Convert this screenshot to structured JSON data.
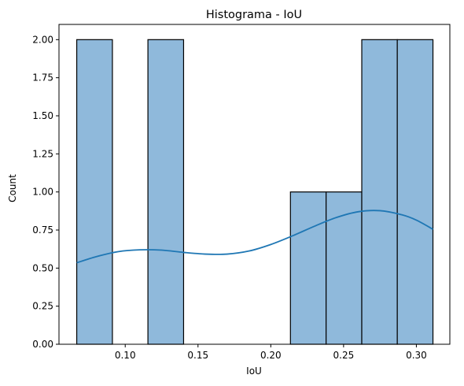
{
  "chart_data": {
    "type": "bar",
    "title": "Histograma - IoU",
    "xlabel": "IoU",
    "ylabel": "Count",
    "xlim": [
      0.0545,
      0.323
    ],
    "ylim": [
      0,
      2.1
    ],
    "bins": [
      {
        "x0": 0.0667,
        "x1": 0.0912,
        "count": 2
      },
      {
        "x0": 0.0912,
        "x1": 0.1156,
        "count": 0
      },
      {
        "x0": 0.1156,
        "x1": 0.1401,
        "count": 2
      },
      {
        "x0": 0.1401,
        "x1": 0.1646,
        "count": 0
      },
      {
        "x0": 0.1646,
        "x1": 0.1891,
        "count": 0
      },
      {
        "x0": 0.1891,
        "x1": 0.2135,
        "count": 0
      },
      {
        "x0": 0.2135,
        "x1": 0.238,
        "count": 1
      },
      {
        "x0": 0.238,
        "x1": 0.2625,
        "count": 1
      },
      {
        "x0": 0.2625,
        "x1": 0.2869,
        "count": 2
      },
      {
        "x0": 0.2869,
        "x1": 0.3114,
        "count": 2
      }
    ],
    "kde": {
      "x": [
        0.0667,
        0.08,
        0.095,
        0.11,
        0.125,
        0.14,
        0.155,
        0.17,
        0.185,
        0.2,
        0.215,
        0.23,
        0.245,
        0.26,
        0.275,
        0.29,
        0.3,
        0.3114
      ],
      "y": [
        0.535,
        0.575,
        0.608,
        0.62,
        0.618,
        0.603,
        0.592,
        0.592,
        0.612,
        0.655,
        0.712,
        0.775,
        0.832,
        0.87,
        0.877,
        0.85,
        0.815,
        0.755
      ]
    },
    "xticks": [
      0.1,
      0.15,
      0.2,
      0.25,
      0.3
    ],
    "xtick_labels": [
      "0.10",
      "0.15",
      "0.20",
      "0.25",
      "0.30"
    ],
    "yticks": [
      0.0,
      0.25,
      0.5,
      0.75,
      1.0,
      1.25,
      1.5,
      1.75,
      2.0
    ],
    "ytick_labels": [
      "0.00",
      "0.25",
      "0.50",
      "0.75",
      "1.00",
      "1.25",
      "1.50",
      "1.75",
      "2.00"
    ],
    "grid": false,
    "colors": {
      "bar_fill": "#8fb9db",
      "bar_edge": "#000000",
      "kde_line": "#1f77b4"
    }
  }
}
